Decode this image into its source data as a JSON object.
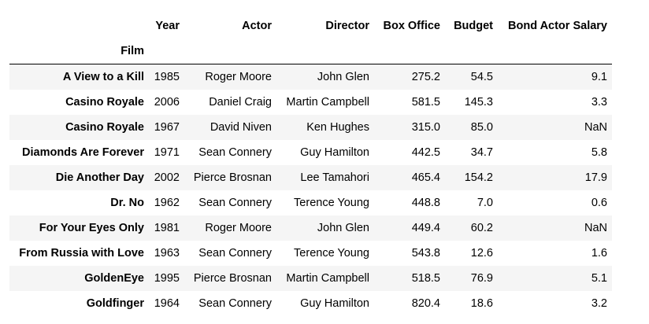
{
  "table": {
    "index_name": "Film",
    "columns": [
      "Year",
      "Actor",
      "Director",
      "Box Office",
      "Budget",
      "Bond Actor Salary"
    ],
    "rows": [
      {
        "film": "A View to a Kill",
        "cells": [
          "1985",
          "Roger Moore",
          "John Glen",
          "275.2",
          "54.5",
          "9.1"
        ]
      },
      {
        "film": "Casino Royale",
        "cells": [
          "2006",
          "Daniel Craig",
          "Martin Campbell",
          "581.5",
          "145.3",
          "3.3"
        ]
      },
      {
        "film": "Casino Royale",
        "cells": [
          "1967",
          "David Niven",
          "Ken Hughes",
          "315.0",
          "85.0",
          "NaN"
        ]
      },
      {
        "film": "Diamonds Are Forever",
        "cells": [
          "1971",
          "Sean Connery",
          "Guy Hamilton",
          "442.5",
          "34.7",
          "5.8"
        ]
      },
      {
        "film": "Die Another Day",
        "cells": [
          "2002",
          "Pierce Brosnan",
          "Lee Tamahori",
          "465.4",
          "154.2",
          "17.9"
        ]
      },
      {
        "film": "Dr. No",
        "cells": [
          "1962",
          "Sean Connery",
          "Terence Young",
          "448.8",
          "7.0",
          "0.6"
        ]
      },
      {
        "film": "For Your Eyes Only",
        "cells": [
          "1981",
          "Roger Moore",
          "John Glen",
          "449.4",
          "60.2",
          "NaN"
        ]
      },
      {
        "film": "From Russia with Love",
        "cells": [
          "1963",
          "Sean Connery",
          "Terence Young",
          "543.8",
          "12.6",
          "1.6"
        ]
      },
      {
        "film": "GoldenEye",
        "cells": [
          "1995",
          "Pierce Brosnan",
          "Martin Campbell",
          "518.5",
          "76.9",
          "5.1"
        ]
      },
      {
        "film": "Goldfinger",
        "cells": [
          "1964",
          "Sean Connery",
          "Guy Hamilton",
          "820.4",
          "18.6",
          "3.2"
        ]
      }
    ]
  }
}
